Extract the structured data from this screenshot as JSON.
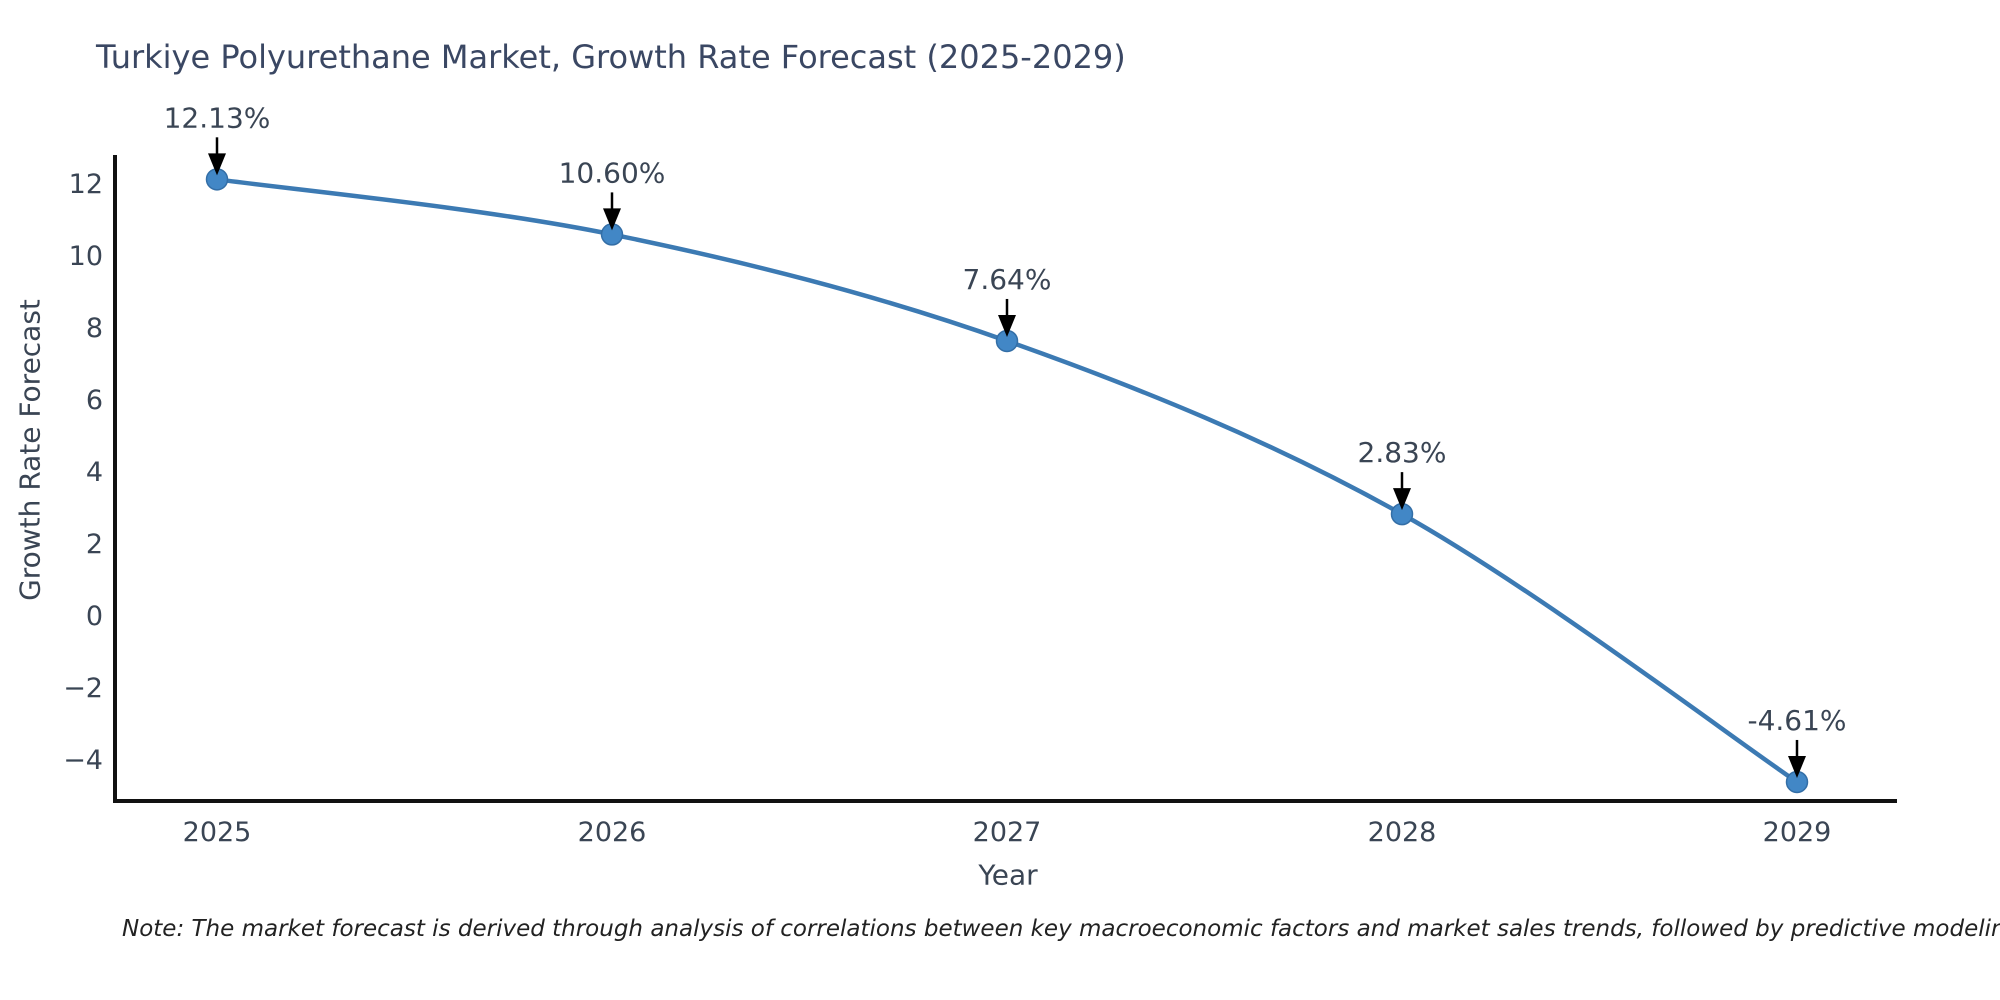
{
  "chart_data": {
    "type": "line",
    "title": "Turkiye Polyurethane Market, Growth Rate Forecast (2025-2029)",
    "xlabel": "Year",
    "ylabel": "Growth Rate Forecast",
    "note": "Note: The market forecast is derived through analysis of correlations between key macroeconomic factors and market sales trends, followed by predictive modeling to project future sales",
    "x": [
      2025,
      2026,
      2027,
      2028,
      2029
    ],
    "values": [
      12.13,
      10.6,
      7.64,
      2.83,
      -4.61
    ],
    "point_labels": [
      "12.13%",
      "10.60%",
      "7.64%",
      "2.83%",
      "-4.61%"
    ],
    "yticks": [
      12,
      10,
      8,
      6,
      4,
      2,
      0,
      -2,
      -4
    ],
    "ylim": [
      -5.3,
      13.0
    ],
    "xlim": [
      2024.74,
      2029.25
    ],
    "grid": false,
    "legend_position": "none",
    "series_name": "Growth Rate Forecast",
    "line_color": "#3c7ab3",
    "marker_color": "#4287c6",
    "marker_edge_color": "#336ea6",
    "arrow_color": "#000000",
    "axis_color": "#111111",
    "tick_text_color": "#3a4554",
    "title_color": "#3a4763",
    "background_color": "#ffffff"
  }
}
